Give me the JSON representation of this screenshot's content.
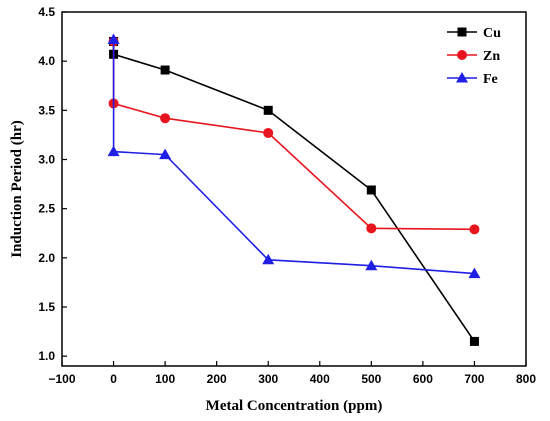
{
  "chart_data": {
    "type": "line",
    "title": "",
    "xlabel": "Metal Concentration (ppm)",
    "ylabel": "Induction Period (hr)",
    "xlim": [
      -100,
      800
    ],
    "ylim": [
      0.9,
      4.5
    ],
    "xticks": [
      -100,
      0,
      100,
      200,
      300,
      400,
      500,
      600,
      700,
      800
    ],
    "yticks": [
      1.0,
      1.5,
      2.0,
      2.5,
      3.0,
      3.5,
      4.0,
      4.5
    ],
    "xtick_labels": [
      "−100",
      "0",
      "100",
      "200",
      "300",
      "400",
      "500",
      "600",
      "700",
      "800"
    ],
    "ytick_labels": [
      "1.0",
      "1.5",
      "2.0",
      "2.5",
      "3.0",
      "3.5",
      "4.0",
      "4.5"
    ],
    "grid": false,
    "legend_position": "top-right",
    "series": [
      {
        "name": "Cu",
        "color": "#000000",
        "marker": "square",
        "x": [
          0,
          0,
          100,
          300,
          500,
          700
        ],
        "y": [
          4.2,
          4.07,
          3.91,
          3.5,
          2.69,
          1.15
        ]
      },
      {
        "name": "Zn",
        "color": "#e8141e",
        "marker": "circle",
        "x": [
          0,
          0,
          100,
          300,
          500,
          700
        ],
        "y": [
          4.2,
          3.57,
          3.42,
          3.27,
          2.3,
          2.29
        ]
      },
      {
        "name": "Fe",
        "color": "#1f1fe6",
        "marker": "triangle",
        "x": [
          0,
          0,
          100,
          300,
          500,
          700
        ],
        "y": [
          4.22,
          3.08,
          3.05,
          1.98,
          1.92,
          1.84
        ]
      }
    ]
  }
}
